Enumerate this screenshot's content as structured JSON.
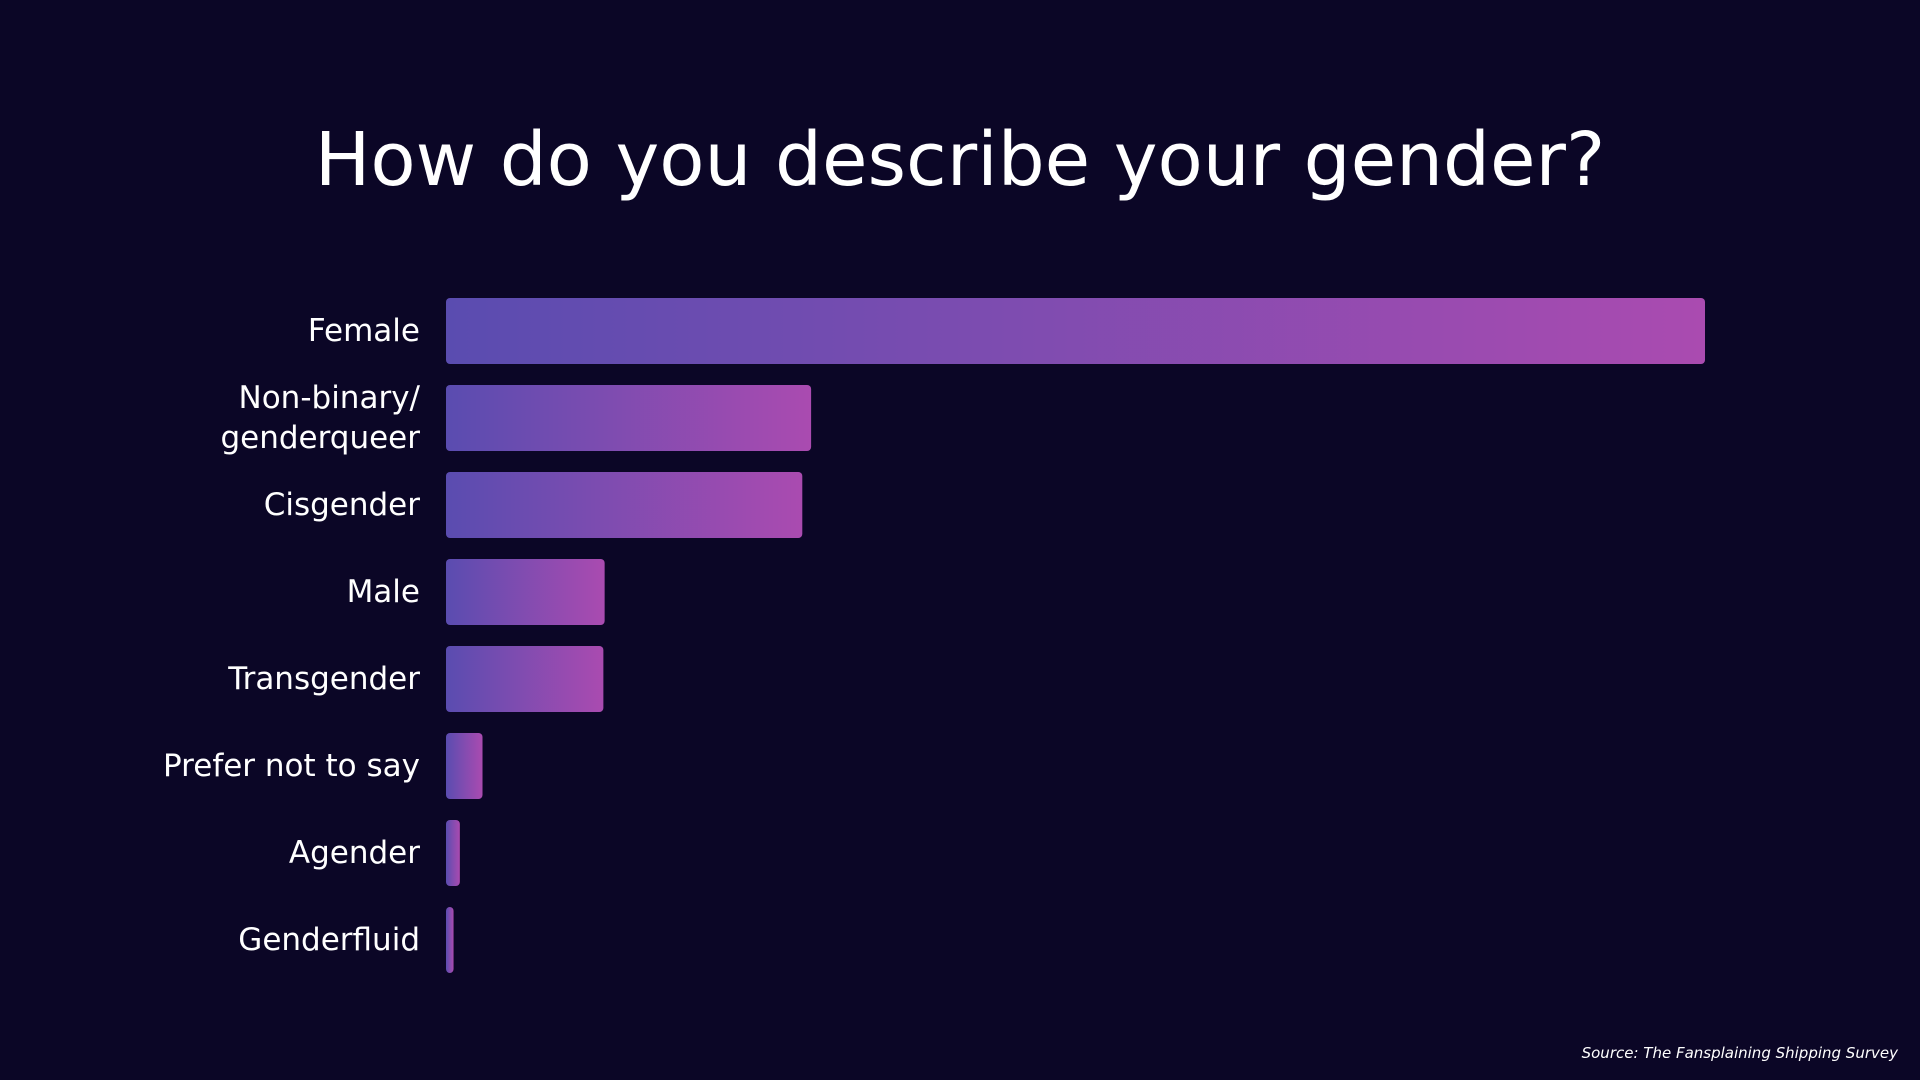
{
  "chart_data": {
    "type": "hbar",
    "title": "How do you describe your gender?",
    "source": "Source: The Fansplaining Shipping Survey",
    "categories": [
      "Female",
      "Non-binary/\ngenderqueer",
      "Cisgender",
      "Male",
      "Transgender",
      "Prefer not to say",
      "Agender",
      "Genderfluid"
    ],
    "values": [
      100,
      29,
      28.3,
      12.6,
      12.5,
      2.9,
      1.1,
      0.6
    ],
    "xlim": [
      0,
      100
    ],
    "gradient": [
      "#5a4cb0",
      "#aa4bb0"
    ],
    "background": "#0b0626"
  }
}
